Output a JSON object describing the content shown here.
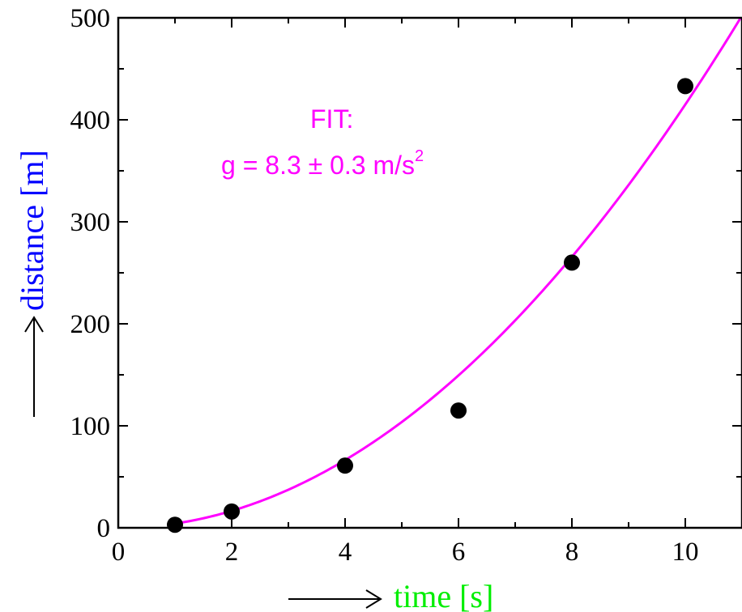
{
  "chart_data": {
    "type": "scatter",
    "xlabel": "time [s]",
    "ylabel": "distance [m]",
    "xlim": [
      0,
      11
    ],
    "ylim": [
      0,
      500
    ],
    "x_ticks": [
      "0",
      "2",
      "4",
      "6",
      "8",
      "10"
    ],
    "y_ticks": [
      "0",
      "100",
      "200",
      "300",
      "400",
      "500"
    ],
    "x_tick_values": [
      0,
      2,
      4,
      6,
      8,
      10
    ],
    "y_tick_values": [
      0,
      100,
      200,
      300,
      400,
      500
    ],
    "x_minor_step": 1,
    "y_minor_step": 50,
    "grid": false,
    "series": [
      {
        "type": "scatter",
        "x": [
          1,
          2,
          4,
          6,
          8,
          10
        ],
        "y": [
          3,
          16,
          61,
          115,
          260,
          433
        ]
      },
      {
        "type": "line",
        "fit": "y = 0.5 * g * x^2",
        "g": 8.3
      }
    ],
    "annotation": {
      "line1": "FIT:",
      "line2_main": "g = 8.3  ± 0.3 m/s",
      "line2_sup": "2"
    },
    "colors": {
      "points": "#000000",
      "fit": "#ff00ff",
      "xlabel": "#00ee00",
      "ylabel": "#0000ff",
      "annotation": "#ff00ff",
      "axes": "#000000"
    }
  }
}
